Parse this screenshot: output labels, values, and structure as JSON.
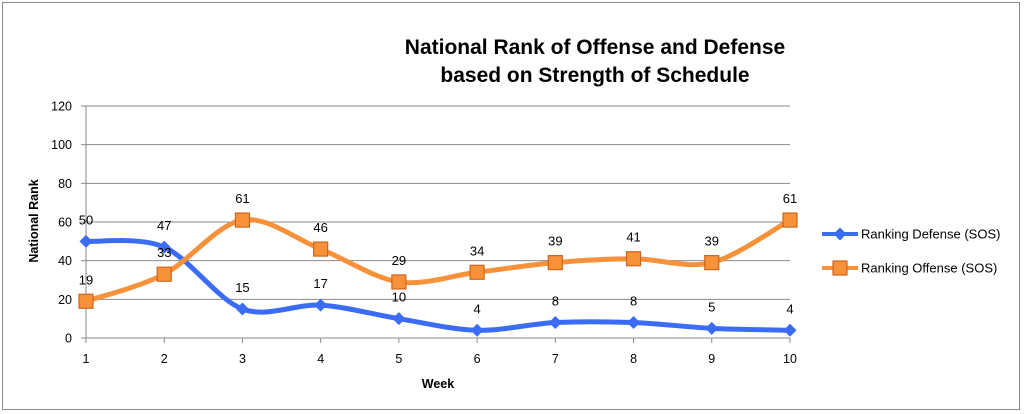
{
  "chart_data": {
    "type": "line",
    "title_lines": [
      "National Rank of Offense and Defense",
      "based on Strength of Schedule"
    ],
    "xlabel": "Week",
    "ylabel": "National Rank",
    "x": [
      1,
      2,
      3,
      4,
      5,
      6,
      7,
      8,
      9,
      10
    ],
    "ylim": [
      0,
      120
    ],
    "yticks": [
      0,
      20,
      40,
      60,
      80,
      100,
      120
    ],
    "grid": true,
    "legend_position": "right",
    "series": [
      {
        "name": "Ranking Defense (SOS)",
        "values": [
          50,
          47,
          15,
          17,
          10,
          4,
          8,
          8,
          5,
          4
        ],
        "color": "#3b6cf6",
        "marker": "diamond"
      },
      {
        "name": "Ranking Offense (SOS)",
        "values": [
          19,
          33,
          61,
          46,
          29,
          34,
          39,
          41,
          39,
          61
        ],
        "color": "#f7923b",
        "marker": "square"
      }
    ]
  }
}
